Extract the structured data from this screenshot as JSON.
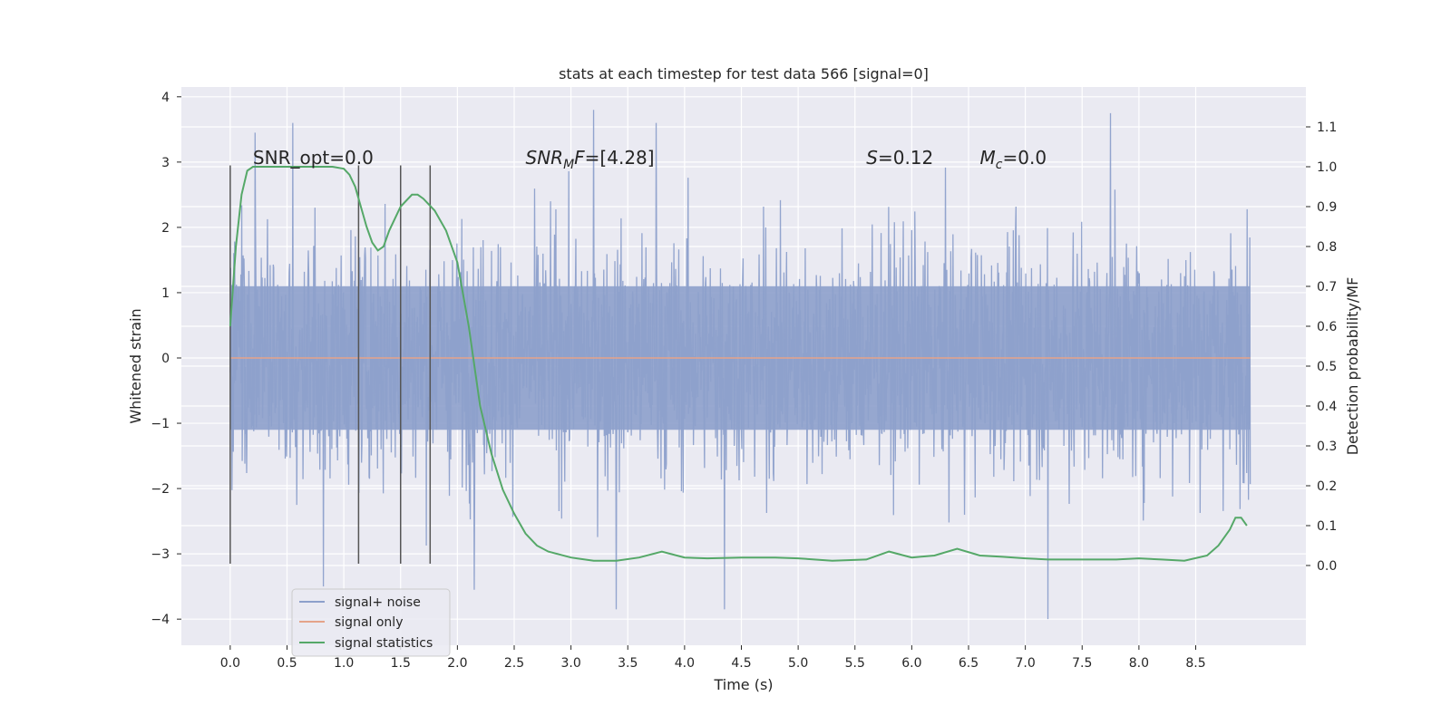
{
  "chart_data": {
    "type": "line",
    "title": "stats at each timestep for test data 566 [signal=0]",
    "xlabel": "Time (s)",
    "ylabel": "Whitened strain",
    "ylabel_right": "Detection probability/MF",
    "xlim": [
      -0.43,
      9.47
    ],
    "ylim": [
      -4.4,
      4.15
    ],
    "ylim_right": [
      -0.2,
      1.2
    ],
    "x_ticks": [
      0.0,
      0.5,
      1.0,
      1.5,
      2.0,
      2.5,
      3.0,
      3.5,
      4.0,
      4.5,
      5.0,
      5.5,
      6.0,
      6.5,
      7.0,
      7.5,
      8.0,
      8.5
    ],
    "x_tick_labels": [
      "0.0",
      "0.5",
      "1.0",
      "1.5",
      "2.0",
      "2.5",
      "3.0",
      "3.5",
      "4.0",
      "4.5",
      "5.0",
      "5.5",
      "6.0",
      "6.5",
      "7.0",
      "7.5",
      "8.0",
      "8.5"
    ],
    "y_ticks": [
      -4,
      -3,
      -2,
      -1,
      0,
      1,
      2,
      3,
      4
    ],
    "y_tick_labels": [
      "−4",
      "−3",
      "−2",
      "−1",
      "0",
      "1",
      "2",
      "3",
      "4"
    ],
    "y_ticks_right": [
      0.0,
      0.1,
      0.2,
      0.3,
      0.4,
      0.5,
      0.6,
      0.7,
      0.8,
      0.9,
      1.0,
      1.1
    ],
    "y_tick_labels_right": [
      "0.0",
      "0.1",
      "0.2",
      "0.3",
      "0.4",
      "0.5",
      "0.6",
      "0.7",
      "0.8",
      "0.9",
      "1.0",
      "1.1"
    ],
    "grid": true,
    "legend_position": "lower-left",
    "annotations": [
      {
        "text": "SNR_opt=0.0",
        "x": 0.2,
        "y": 3.0
      },
      {
        "text": "SNR_MF=[4.28]",
        "x": 2.6,
        "y": 3.0
      },
      {
        "text": "S=0.12",
        "x": 5.6,
        "y": 3.0
      },
      {
        "text": "M_c=0.0",
        "x": 6.6,
        "y": 3.0
      }
    ],
    "vlines": {
      "x": [
        0.0,
        1.13,
        1.5,
        1.76
      ],
      "ymin": -3.15,
      "ymax": 2.95,
      "color": "#555555"
    },
    "series": [
      {
        "name": "signal+ noise",
        "axis": "left",
        "style": "dense-noise",
        "color": "#8da0cb",
        "x_range": [
          0.0,
          8.98
        ],
        "samples": 2300,
        "body_sigma": 1.35,
        "envelope": [
          -2.5,
          2.5
        ],
        "notable_peaks": [
          {
            "x": 0.22,
            "y": 3.45
          },
          {
            "x": 0.55,
            "y": 3.6
          },
          {
            "x": 3.2,
            "y": 3.8
          },
          {
            "x": 3.75,
            "y": 3.6
          },
          {
            "x": 7.75,
            "y": 3.75
          },
          {
            "x": 0.82,
            "y": -3.5
          },
          {
            "x": 2.15,
            "y": -3.55
          },
          {
            "x": 3.4,
            "y": -3.85
          },
          {
            "x": 4.35,
            "y": -3.85
          },
          {
            "x": 7.2,
            "y": -4.0
          }
        ]
      },
      {
        "name": "signal only",
        "axis": "left",
        "color": "#e5a38a",
        "x": [
          0.0,
          8.98
        ],
        "y": [
          0.0,
          0.0
        ]
      },
      {
        "name": "signal statistics",
        "axis": "right",
        "color": "#55a868",
        "x": [
          0.0,
          0.05,
          0.1,
          0.15,
          0.2,
          0.3,
          0.4,
          0.5,
          0.6,
          0.7,
          0.8,
          0.9,
          1.0,
          1.05,
          1.1,
          1.15,
          1.2,
          1.25,
          1.3,
          1.35,
          1.4,
          1.5,
          1.6,
          1.65,
          1.7,
          1.8,
          1.9,
          2.0,
          2.1,
          2.2,
          2.3,
          2.4,
          2.5,
          2.6,
          2.7,
          2.8,
          3.0,
          3.2,
          3.4,
          3.6,
          3.8,
          4.0,
          4.2,
          4.5,
          4.8,
          5.0,
          5.3,
          5.6,
          5.8,
          6.0,
          6.2,
          6.4,
          6.6,
          6.8,
          7.0,
          7.2,
          7.5,
          7.8,
          8.0,
          8.2,
          8.4,
          8.6,
          8.7,
          8.8,
          8.85,
          8.9,
          8.95
        ],
        "y": [
          0.6,
          0.8,
          0.93,
          0.99,
          1.0,
          1.0,
          1.0,
          1.0,
          1.0,
          1.0,
          1.0,
          1.0,
          0.995,
          0.98,
          0.95,
          0.9,
          0.85,
          0.81,
          0.79,
          0.8,
          0.84,
          0.9,
          0.93,
          0.93,
          0.92,
          0.89,
          0.84,
          0.76,
          0.6,
          0.4,
          0.28,
          0.19,
          0.13,
          0.08,
          0.05,
          0.035,
          0.02,
          0.012,
          0.012,
          0.02,
          0.035,
          0.02,
          0.018,
          0.02,
          0.02,
          0.018,
          0.012,
          0.015,
          0.035,
          0.02,
          0.025,
          0.042,
          0.025,
          0.022,
          0.018,
          0.015,
          0.015,
          0.015,
          0.018,
          0.015,
          0.012,
          0.025,
          0.05,
          0.09,
          0.12,
          0.12,
          0.1
        ]
      }
    ]
  }
}
